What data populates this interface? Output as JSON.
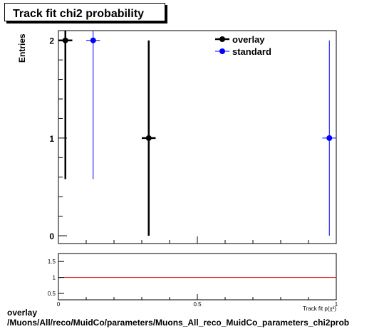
{
  "title": "Track fit chi2 probability",
  "ylabel": "Entries",
  "footer": {
    "line1": "overlay",
    "line2": "/Muons/All/reco/MuidCo/parameters/Muons_All_reco_MuidCo_parameters_chi2prob"
  },
  "chart_data": [
    {
      "type": "scatter",
      "title": "Track fit chi2 probability",
      "ylabel": "Entries",
      "xlim": [
        0,
        1
      ],
      "ylim": [
        -0.08,
        2.1
      ],
      "yticks": [
        0,
        1,
        2
      ],
      "legend_position": "top-right",
      "series": [
        {
          "name": "overlay",
          "color": "#000000",
          "points": [
            {
              "x": 0.025,
              "y": 2,
              "yerr_low": 1.42,
              "yerr_high": 0.1,
              "xerr": 0.025
            },
            {
              "x": 0.325,
              "y": 1,
              "yerr_low": 1.0,
              "yerr_high": 1.0,
              "xerr": 0.025
            }
          ]
        },
        {
          "name": "standard",
          "color": "#0000ff",
          "points": [
            {
              "x": 0.125,
              "y": 2,
              "yerr_low": 1.42,
              "yerr_high": 0.1,
              "xerr": 0.025
            },
            {
              "x": 0.975,
              "y": 1,
              "yerr_low": 1.0,
              "yerr_high": 1.0,
              "xerr": 0.025
            }
          ]
        }
      ]
    },
    {
      "type": "line",
      "xlim": [
        0,
        1
      ],
      "ylim": [
        0.3,
        1.75
      ],
      "yticks": [
        "0.5",
        "1",
        "1.5"
      ],
      "xticks": [
        "0",
        "0.5",
        "1"
      ],
      "xlabel": "Track fit p(χ²)",
      "reference_line": {
        "y": 1,
        "color": "#cc0000"
      }
    }
  ]
}
